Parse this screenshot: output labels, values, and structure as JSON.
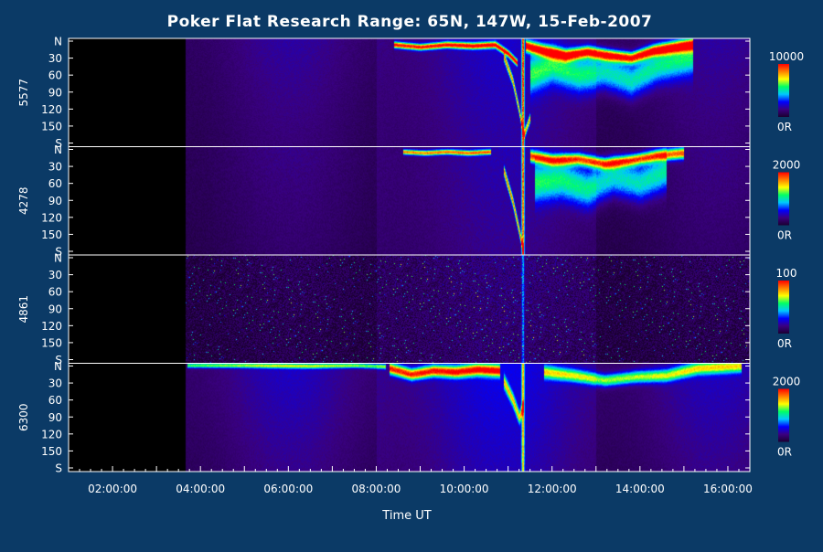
{
  "chart_data": {
    "type": "heatmap",
    "title": "Poker Flat Research Range: 65N, 147W, 15-Feb-2007",
    "xlabel": "Time UT",
    "x_ticks": [
      "02:00:00",
      "04:00:00",
      "06:00:00",
      "08:00:00",
      "10:00:00",
      "12:00:00",
      "14:00:00",
      "16:00:00"
    ],
    "x_range_hours": [
      1.0,
      16.5
    ],
    "data_start_hour": 3.65,
    "colorbar_colors": [
      "#1a0030",
      "#3a0080",
      "#0000ff",
      "#00c8ff",
      "#00ff64",
      "#ffff00",
      "#ff8000",
      "#ff0000"
    ],
    "panels": [
      {
        "name": "5577",
        "y_ticks": [
          "N",
          "30",
          "60",
          "90",
          "120",
          "150",
          "S"
        ],
        "colorbar_max": "10000",
        "colorbar_min": "0R",
        "background_level": 0.18,
        "noise": 0.04,
        "arcs": [
          {
            "t": [
              8.4,
              9.0,
              9.6,
              10.2,
              10.7,
              11.0,
              11.2
            ],
            "lat": [
              10,
              14,
              10,
              12,
              10,
              25,
              40
            ],
            "width": 5,
            "intensity": 0.95
          },
          {
            "t": [
              11.4,
              11.8,
              12.3,
              12.8,
              13.3,
              13.8,
              14.3,
              14.8,
              15.2
            ],
            "lat": [
              12,
              20,
              28,
              22,
              28,
              32,
              20,
              14,
              10
            ],
            "width": 9,
            "intensity": 0.98
          },
          {
            "t": [
              10.9,
              11.1,
              11.25,
              11.35,
              11.5
            ],
            "lat": [
              30,
              70,
              120,
              160,
              130
            ],
            "width": 7,
            "intensity": 0.7
          },
          {
            "t": [
              11.5,
              12.0,
              12.6,
              13.2,
              13.8,
              14.4,
              15.2
            ],
            "lat": [
              60,
              45,
              60,
              55,
              70,
              45,
              30
            ],
            "width": 28,
            "intensity": 0.45
          }
        ],
        "vertical_line": {
          "t": 11.33,
          "intensity": 0.95
        }
      },
      {
        "name": "4278",
        "y_ticks": [
          "N",
          "30",
          "60",
          "90",
          "120",
          "150",
          "S"
        ],
        "colorbar_max": "2000",
        "colorbar_min": "0R",
        "background_level": 0.15,
        "noise": 0.05,
        "arcs": [
          {
            "t": [
              8.6,
              9.1,
              9.6,
              10.1,
              10.6
            ],
            "lat": [
              8,
              10,
              8,
              10,
              8
            ],
            "width": 4,
            "intensity": 0.8
          },
          {
            "t": [
              11.5,
              12.0,
              12.6,
              13.2,
              13.8,
              14.4,
              15.0
            ],
            "lat": [
              15,
              22,
              20,
              28,
              22,
              14,
              10
            ],
            "width": 9,
            "intensity": 0.85
          },
          {
            "t": [
              10.9,
              11.1,
              11.25,
              11.35
            ],
            "lat": [
              40,
              90,
              140,
              175
            ],
            "width": 8,
            "intensity": 0.75
          },
          {
            "t": [
              11.6,
              12.2,
              12.8,
              13.4,
              14.0,
              14.6
            ],
            "lat": [
              60,
              55,
              70,
              50,
              60,
              40
            ],
            "width": 30,
            "intensity": 0.45
          }
        ],
        "vertical_line": {
          "t": 11.33,
          "intensity": 0.9
        }
      },
      {
        "name": "4861",
        "y_ticks": [
          "N",
          "30",
          "60",
          "90",
          "120",
          "150",
          "S"
        ],
        "colorbar_max": "100",
        "colorbar_min": "0R",
        "background_level": 0.08,
        "noise": 0.16,
        "arcs": [],
        "vertical_line": {
          "t": 11.33,
          "intensity": 0.35
        }
      },
      {
        "name": "6300",
        "y_ticks": [
          "N",
          "30",
          "60",
          "90",
          "120",
          "150",
          "S"
        ],
        "colorbar_max": "2000",
        "colorbar_min": "0R",
        "background_level": 0.22,
        "noise": 0.04,
        "arcs": [
          {
            "t": [
              3.7,
              5.0,
              6.5,
              7.5,
              8.2
            ],
            "lat": [
              3,
              3,
              4,
              3,
              5
            ],
            "width": 4,
            "intensity": 0.55
          },
          {
            "t": [
              8.3,
              8.8,
              9.3,
              9.8,
              10.3,
              10.8
            ],
            "lat": [
              8,
              18,
              12,
              14,
              10,
              12
            ],
            "width": 9,
            "intensity": 0.9
          },
          {
            "t": [
              10.9,
              11.1,
              11.25,
              11.35
            ],
            "lat": [
              30,
              60,
              90,
              70
            ],
            "width": 10,
            "intensity": 0.6
          },
          {
            "t": [
              11.8,
              12.5,
              13.2,
              13.9,
              14.6,
              15.3,
              16.3
            ],
            "lat": [
              14,
              20,
              28,
              22,
              20,
              8,
              4
            ],
            "width": 10,
            "intensity": 0.6
          }
        ],
        "vertical_line": {
          "t": 11.33,
          "intensity": 0.7
        }
      }
    ]
  }
}
